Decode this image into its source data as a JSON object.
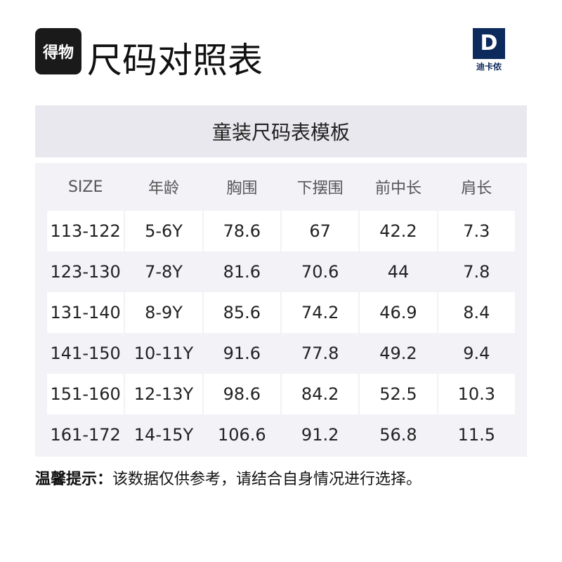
{
  "header": {
    "logo_text": "得物",
    "title": "尺码对照表",
    "brand_mark": "D",
    "brand_name": "迪卡侬"
  },
  "table": {
    "title": "童装尺码表模板",
    "columns": [
      "SIZE",
      "年龄",
      "胸围",
      "下摆围",
      "前中长",
      "肩长"
    ],
    "rows": [
      [
        "113-122",
        "5-6Y",
        "78.6",
        "67",
        "42.2",
        "7.3"
      ],
      [
        "123-130",
        "7-8Y",
        "81.6",
        "70.6",
        "44",
        "7.8"
      ],
      [
        "131-140",
        "8-9Y",
        "85.6",
        "74.2",
        "46.9",
        "8.4"
      ],
      [
        "141-150",
        "10-11Y",
        "91.6",
        "77.8",
        "49.2",
        "9.4"
      ],
      [
        "151-160",
        "12-13Y",
        "98.6",
        "84.2",
        "52.5",
        "10.3"
      ],
      [
        "161-172",
        "14-15Y",
        "106.6",
        "91.2",
        "56.8",
        "11.5"
      ]
    ]
  },
  "tip": {
    "label": "温馨提示：",
    "text": "该数据仅供参考，请结合自身情况进行选择。"
  }
}
